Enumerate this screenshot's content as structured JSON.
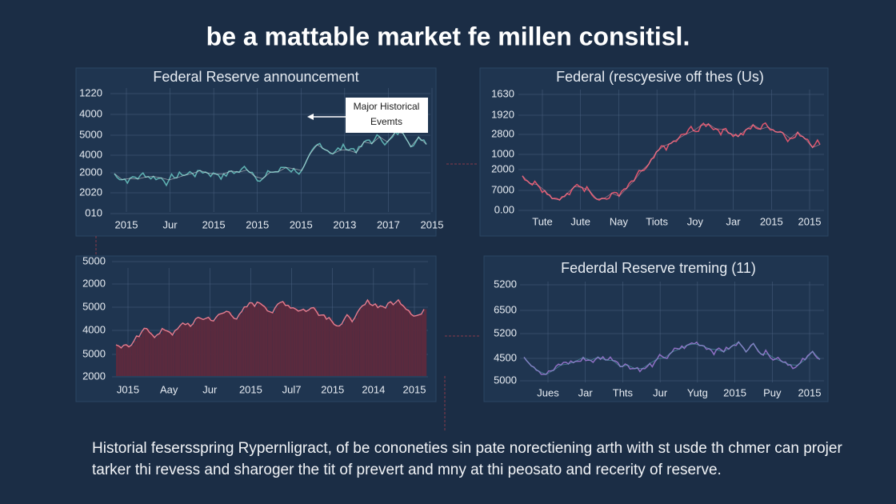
{
  "header": {
    "title": "be a mattable market fe millen consitisl."
  },
  "panels": [
    {
      "title": "Federal Reserve announcement",
      "y_labels": [
        "1220",
        "4000",
        "5000",
        "4000",
        "2000",
        "2020",
        "010"
      ],
      "x_labels": [
        "2015",
        "Jur",
        "2015",
        "2015",
        "2015",
        "2013",
        "2017",
        "2015"
      ],
      "annotation": "Major Historical Evemts"
    },
    {
      "title": "Federal (rescyesive off thes (Us)",
      "y_labels": [
        "1630",
        "1920",
        "2800",
        "1000",
        "2000",
        "7000",
        "0.00"
      ],
      "x_labels": [
        "Tute",
        "Jute",
        "Nay",
        "Tiots",
        "Joy",
        "Jar",
        "2015",
        "2015"
      ]
    },
    {
      "y_labels": [
        "5000",
        "2000",
        "5000",
        "4000",
        "5000",
        "2000"
      ],
      "x_labels": [
        "J015",
        "Aay",
        "Jur",
        "2015",
        "Jul7",
        "2015",
        "2014",
        "2015"
      ]
    },
    {
      "title": "Federdal Reserve treming (11)",
      "y_labels": [
        "5200",
        "6500",
        "5200",
        "4500",
        "5000"
      ],
      "x_labels": [
        "Jues",
        "Jar",
        "Thts",
        "Jur",
        "Yutg",
        "2015",
        "Puy",
        "2015"
      ]
    }
  ],
  "footer": {
    "lines": [
      "Historial fesersspring Rypernligract, of be cononeties sin pate norectiening arth with st usde th chmer can projer",
      "tarker thi revess and sharoger the tit of prevert and mny at thi peosato and recerity of reserve."
    ]
  }
}
